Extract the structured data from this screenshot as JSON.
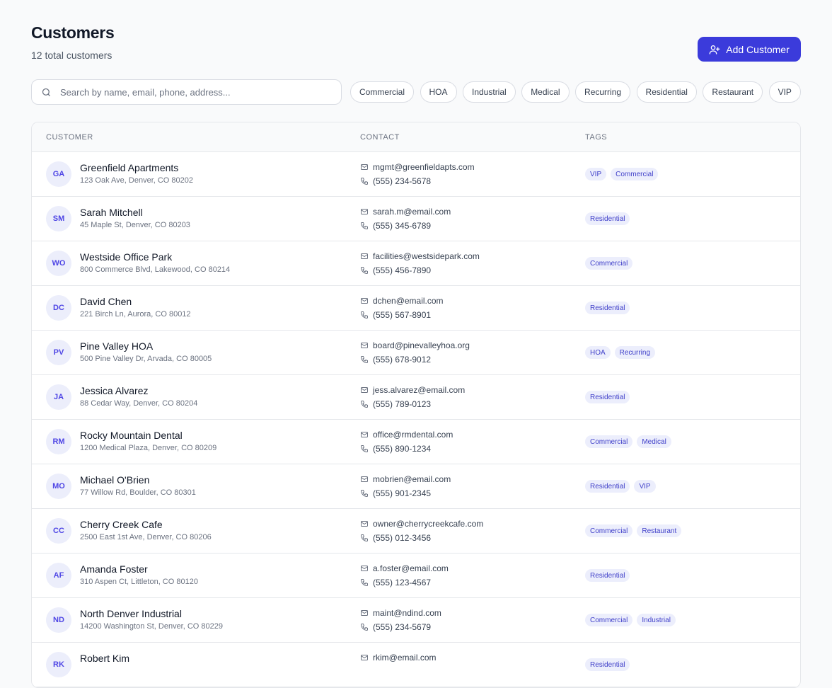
{
  "header": {
    "title": "Customers",
    "subtitle": "12 total customers",
    "button": "Add Customer"
  },
  "search": {
    "placeholder": "Search by name, email, phone, address..."
  },
  "filters": [
    "Commercial",
    "HOA",
    "Industrial",
    "Medical",
    "Recurring",
    "Residential",
    "Restaurant",
    "VIP"
  ],
  "table": {
    "columns": [
      "CUSTOMER",
      "CONTACT",
      "TAGS"
    ],
    "rows": [
      {
        "initials": "GA",
        "name": "Greenfield Apartments",
        "address": "123 Oak Ave, Denver, CO 80202",
        "email": "mgmt@greenfieldapts.com",
        "phone": "(555) 234-5678",
        "tags": [
          "VIP",
          "Commercial"
        ]
      },
      {
        "initials": "SM",
        "name": "Sarah Mitchell",
        "address": "45 Maple St, Denver, CO 80203",
        "email": "sarah.m@email.com",
        "phone": "(555) 345-6789",
        "tags": [
          "Residential"
        ]
      },
      {
        "initials": "WO",
        "name": "Westside Office Park",
        "address": "800 Commerce Blvd, Lakewood, CO 80214",
        "email": "facilities@westsidepark.com",
        "phone": "(555) 456-7890",
        "tags": [
          "Commercial"
        ]
      },
      {
        "initials": "DC",
        "name": "David Chen",
        "address": "221 Birch Ln, Aurora, CO 80012",
        "email": "dchen@email.com",
        "phone": "(555) 567-8901",
        "tags": [
          "Residential"
        ]
      },
      {
        "initials": "PV",
        "name": "Pine Valley HOA",
        "address": "500 Pine Valley Dr, Arvada, CO 80005",
        "email": "board@pinevalleyhoa.org",
        "phone": "(555) 678-9012",
        "tags": [
          "HOA",
          "Recurring"
        ]
      },
      {
        "initials": "JA",
        "name": "Jessica Alvarez",
        "address": "88 Cedar Way, Denver, CO 80204",
        "email": "jess.alvarez@email.com",
        "phone": "(555) 789-0123",
        "tags": [
          "Residential"
        ]
      },
      {
        "initials": "RM",
        "name": "Rocky Mountain Dental",
        "address": "1200 Medical Plaza, Denver, CO 80209",
        "email": "office@rmdental.com",
        "phone": "(555) 890-1234",
        "tags": [
          "Commercial",
          "Medical"
        ]
      },
      {
        "initials": "MO",
        "name": "Michael O'Brien",
        "address": "77 Willow Rd, Boulder, CO 80301",
        "email": "mobrien@email.com",
        "phone": "(555) 901-2345",
        "tags": [
          "Residential",
          "VIP"
        ]
      },
      {
        "initials": "CC",
        "name": "Cherry Creek Cafe",
        "address": "2500 East 1st Ave, Denver, CO 80206",
        "email": "owner@cherrycreekcafe.com",
        "phone": "(555) 012-3456",
        "tags": [
          "Commercial",
          "Restaurant"
        ]
      },
      {
        "initials": "AF",
        "name": "Amanda Foster",
        "address": "310 Aspen Ct, Littleton, CO 80120",
        "email": "a.foster@email.com",
        "phone": "(555) 123-4567",
        "tags": [
          "Residential"
        ]
      },
      {
        "initials": "ND",
        "name": "North Denver Industrial",
        "address": "14200 Washington St, Denver, CO 80229",
        "email": "maint@ndind.com",
        "phone": "(555) 234-5679",
        "tags": [
          "Commercial",
          "Industrial"
        ]
      },
      {
        "initials": "RK",
        "name": "Robert Kim",
        "email": "rkim@email.com",
        "tags": [
          "Residential"
        ]
      }
    ]
  }
}
